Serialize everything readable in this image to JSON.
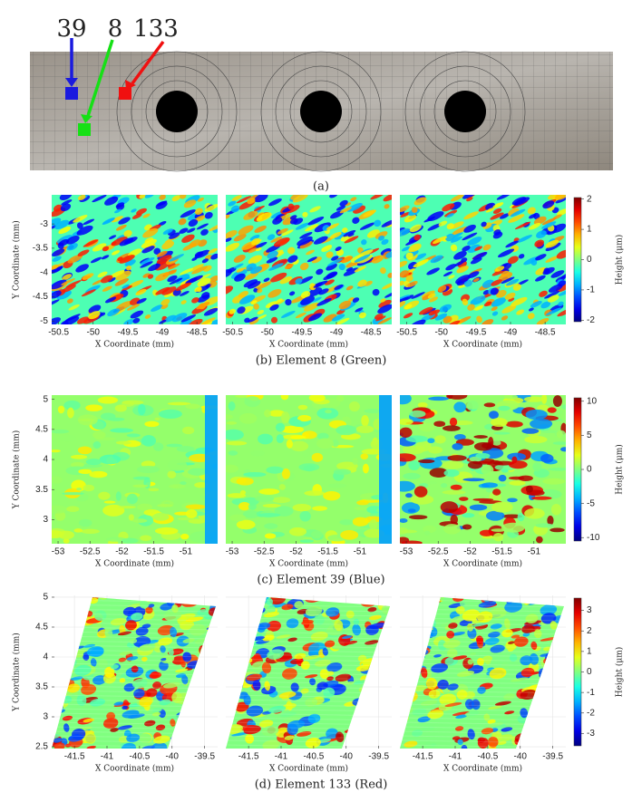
{
  "panel_a": {
    "labels": [
      "39",
      "8",
      "133"
    ],
    "caption": "(a)"
  },
  "rows": [
    {
      "xticks": [
        -50.5,
        -50,
        -49.5,
        -49,
        -48.5
      ],
      "xlim": [
        -50.6,
        -48.2
      ],
      "yticks": [
        -3,
        -3.5,
        -4,
        -4.5,
        -5
      ],
      "ylim": [
        -5.07,
        -2.4
      ],
      "colorbar_ticks": [
        2,
        1,
        0,
        -1,
        -2
      ],
      "colorbar_lim": [
        -2.05,
        2.05
      ],
      "x_label": "X Coordinate (mm)",
      "y_label": "Y Coordinate (mm)",
      "colorbar_label": "Height (μm)",
      "caption": "(b) Element 8 (Green)"
    },
    {
      "xticks": [
        -53,
        -52.5,
        -52,
        -51.5,
        -51
      ],
      "xlim": [
        -53.1,
        -50.5
      ],
      "yticks": [
        5,
        4.5,
        4,
        3.5,
        3
      ],
      "ylim": [
        2.6,
        5.07
      ],
      "colorbar_ticks": [
        10,
        5,
        0,
        -5,
        -10
      ],
      "colorbar_lim": [
        -10.5,
        10.5
      ],
      "x_label": "X Coordinate (mm)",
      "y_label": "Y Coordinate (mm)",
      "colorbar_label": "Height (μm)",
      "caption": "(c) Element 39 (Blue)"
    },
    {
      "xticks": [
        -41.5,
        -41,
        -40.5,
        -40,
        -39.5
      ],
      "xlim": [
        -41.85,
        -39.3
      ],
      "yticks": [
        5,
        4.5,
        4,
        3.5,
        3,
        2.5
      ],
      "ylim": [
        2.47,
        5.03
      ],
      "colorbar_ticks": [
        3,
        2,
        1,
        0,
        -1,
        -2,
        -3
      ],
      "colorbar_lim": [
        -3.6,
        3.6
      ],
      "x_label": "X Coordinate (mm)",
      "y_label": "Y Coordinate (mm)",
      "colorbar_label": "Height (μm)",
      "caption": "(d) Element 133 (Red)"
    }
  ]
}
